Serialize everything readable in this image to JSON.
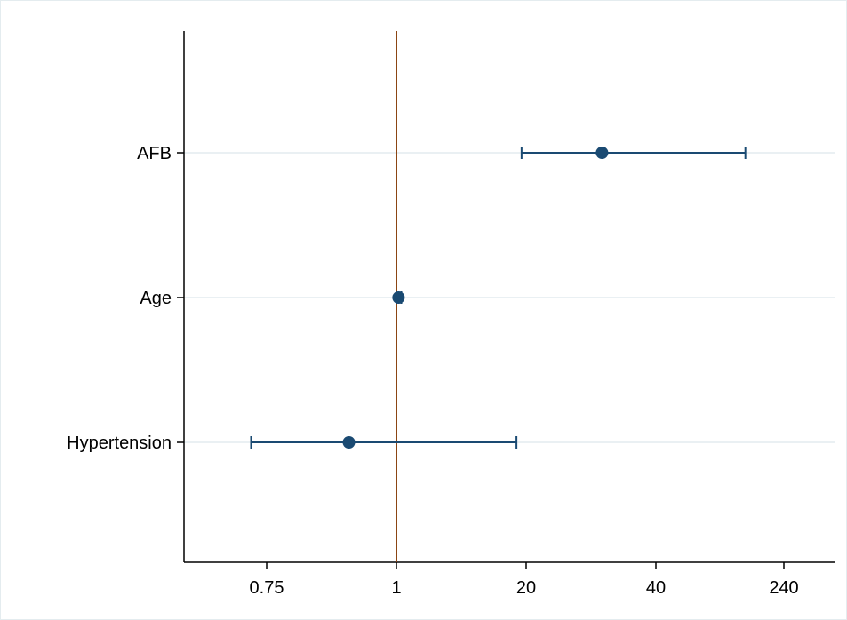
{
  "chart_data": {
    "type": "scatter",
    "subtype": "forest-plot",
    "title": "",
    "xlabel": "",
    "ylabel": "",
    "x_scale": "categorical-log-like",
    "x_tick_labels": [
      "0.75",
      "1",
      "20",
      "40",
      "240"
    ],
    "reference_line": {
      "x": 1,
      "color": "#8b4513"
    },
    "categories": [
      "AFB",
      "Age",
      "Hypertension"
    ],
    "points": [
      {
        "label": "AFB",
        "estimate": 30,
        "ci_lower": 18,
        "ci_upper": 140
      },
      {
        "label": "Age",
        "estimate": 1.05,
        "ci_lower": 1.0,
        "ci_upper": 1.12
      },
      {
        "label": "Hypertension",
        "estimate": 0.9,
        "ci_lower": 0.72,
        "ci_upper": 16
      }
    ],
    "grid": "horizontal",
    "legend": "none"
  },
  "colors": {
    "point": "#1a4a72",
    "ci": "#1a4a72",
    "reference": "#8b4513",
    "grid": "#e4ecef",
    "axis": "#000000"
  }
}
